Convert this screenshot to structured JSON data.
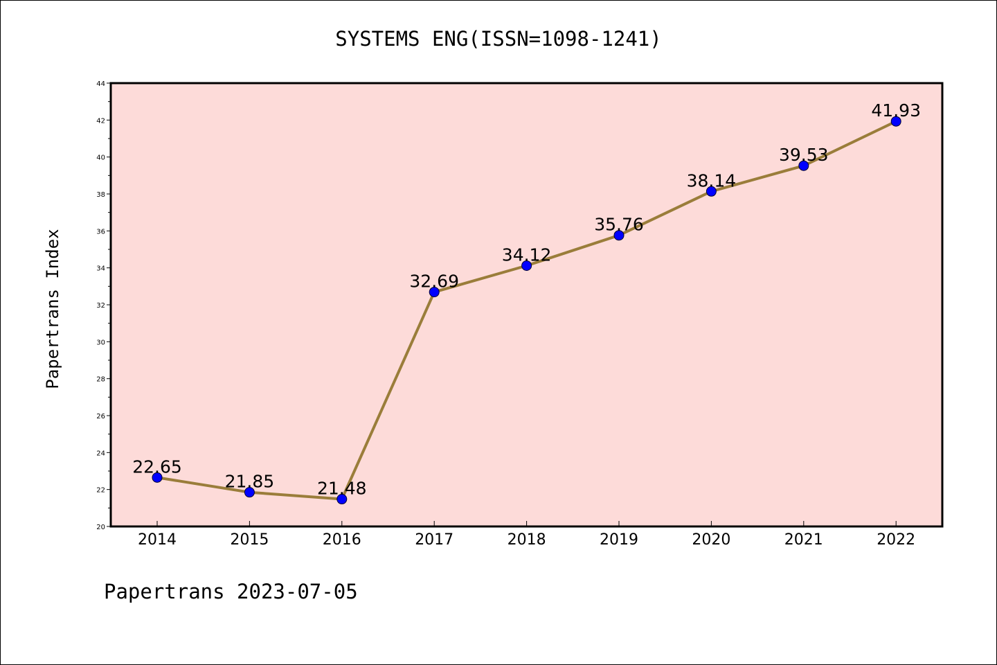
{
  "chart_data": {
    "type": "line",
    "title": "SYSTEMS ENG(ISSN=1098-1241)",
    "xlabel": "",
    "ylabel": "Papertrans Index",
    "categories": [
      "2014",
      "2015",
      "2016",
      "2017",
      "2018",
      "2019",
      "2020",
      "2021",
      "2022"
    ],
    "series": [
      {
        "values": [
          22.65,
          21.85,
          21.48,
          32.69,
          34.12,
          35.76,
          38.14,
          39.53,
          41.93
        ],
        "labels": [
          "22.65",
          "21.85",
          "21.48",
          "32.69",
          "34.12",
          "35.76",
          "38.14",
          "39.53",
          "41.93"
        ]
      }
    ],
    "ylim": [
      20,
      44
    ],
    "yticks": [
      "20",
      "22",
      "24",
      "26",
      "28",
      "30",
      "32",
      "34",
      "36",
      "38",
      "40",
      "42",
      "44"
    ],
    "grid": false,
    "colors": {
      "plot_background": "#fddbd9",
      "line": "#9a7d3a",
      "marker": "#0000ff"
    }
  },
  "footer": {
    "text": "Papertrans 2023-07-05"
  }
}
